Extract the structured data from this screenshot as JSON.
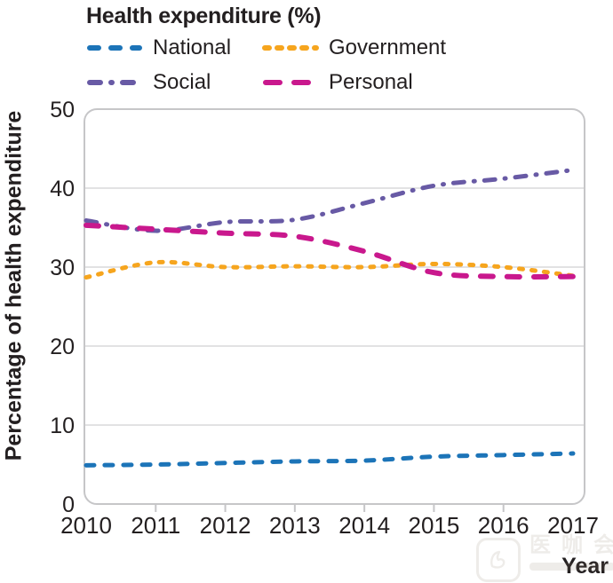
{
  "title": "Health expenditure (%)",
  "legend": [
    {
      "label": "National",
      "color": "#1C74B8",
      "line_style": "dashed"
    },
    {
      "label": "Government",
      "color": "#F6A51E",
      "line_style": "short-dashed"
    },
    {
      "label": "Social",
      "color": "#685AA5",
      "line_style": "dash-dot"
    },
    {
      "label": "Personal",
      "color": "#C9188D",
      "line_style": "long-dashed"
    }
  ],
  "chart_data": {
    "type": "line",
    "title": "Health expenditure (%)",
    "xlabel": "Year",
    "ylabel": "Percentage of health expenditure",
    "x": [
      2010,
      2011,
      2012,
      2013,
      2014,
      2015,
      2016,
      2017
    ],
    "xticks": [
      "2010",
      "2011",
      "2012",
      "2013",
      "2014",
      "2015",
      "2016",
      "2017"
    ],
    "ylim": [
      0,
      50
    ],
    "yticks": [
      0,
      10,
      20,
      30,
      40,
      50
    ],
    "grid": true,
    "legend_position": "top",
    "series": [
      {
        "name": "Government",
        "color": "#F6A51E",
        "line_style": "short-dashed",
        "values": [
          28.7,
          30.6,
          30.0,
          30.1,
          30.0,
          30.4,
          30.0,
          28.9
        ]
      },
      {
        "name": "Social",
        "color": "#685AA5",
        "line_style": "dash-dot",
        "values": [
          35.9,
          34.6,
          35.7,
          36.0,
          38.1,
          40.3,
          41.2,
          42.3
        ]
      },
      {
        "name": "Personal",
        "color": "#C9188D",
        "line_style": "long-dashed",
        "values": [
          35.3,
          34.8,
          34.3,
          33.9,
          32.0,
          29.3,
          28.8,
          28.8
        ]
      },
      {
        "name": "National",
        "color": "#1C74B8",
        "line_style": "dashed",
        "values": [
          4.9,
          5.0,
          5.2,
          5.4,
          5.5,
          6.0,
          6.2,
          6.4
        ]
      }
    ]
  },
  "colors": {
    "text": "#231F20",
    "gridline": "#D8D8DA",
    "axis_border": "#C6C6C8"
  },
  "watermark": {
    "brand": "医咖会"
  }
}
